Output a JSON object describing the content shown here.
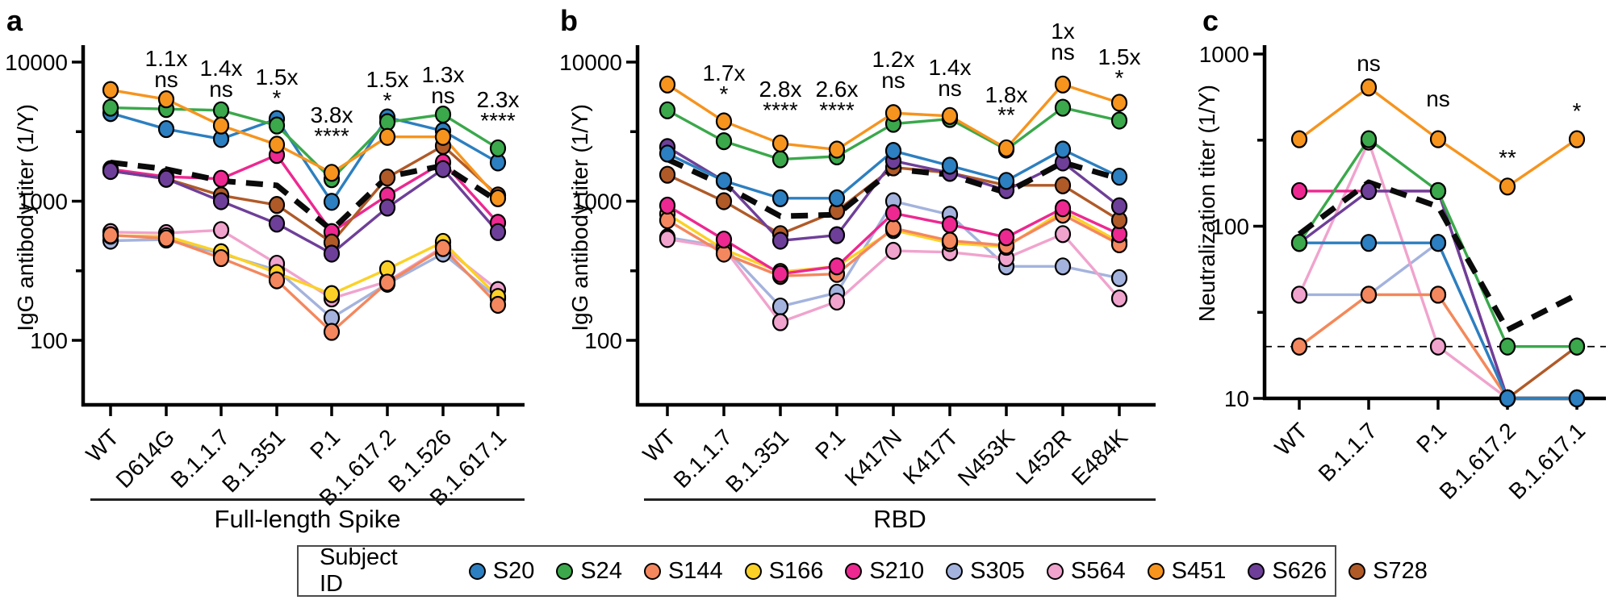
{
  "legend": {
    "title": "Subject ID",
    "subjects": [
      {
        "id": "S20",
        "color": "#2c7fc0"
      },
      {
        "id": "S24",
        "color": "#3aa84b"
      },
      {
        "id": "S144",
        "color": "#f4875e"
      },
      {
        "id": "S166",
        "color": "#fbd127"
      },
      {
        "id": "S210",
        "color": "#ed2891"
      },
      {
        "id": "S305",
        "color": "#a4b3dd"
      },
      {
        "id": "S564",
        "color": "#f0a3cd"
      },
      {
        "id": "S451",
        "color": "#f6941e"
      },
      {
        "id": "S626",
        "color": "#6e3f98"
      },
      {
        "id": "S728",
        "color": "#b05a28"
      }
    ]
  },
  "chart_data": [
    {
      "type": "line",
      "panel_label": "a",
      "ylabel": "IgG antibody titer (1/Y)",
      "group_label": "Full-length Spike",
      "yscale": "log",
      "ylim": [
        50,
        13000
      ],
      "yticks": [
        100,
        1000,
        10000
      ],
      "categories": [
        "WT",
        "D614G",
        "B.1.1.7",
        "B.1.351",
        "P.1",
        "B.1.617.2",
        "B.1.526",
        "B.1.617.1"
      ],
      "series": [
        {
          "name": "S20",
          "values": [
            4300,
            3300,
            2800,
            3900,
            990,
            4000,
            3200,
            1900
          ]
        },
        {
          "name": "S24",
          "values": [
            4700,
            4600,
            4500,
            3500,
            1440,
            3700,
            4200,
            2400
          ]
        },
        {
          "name": "S144",
          "values": [
            570,
            540,
            390,
            270,
            115,
            260,
            460,
            180
          ]
        },
        {
          "name": "S166",
          "values": [
            565,
            560,
            430,
            305,
            215,
            325,
            510,
            205
          ]
        },
        {
          "name": "S210",
          "values": [
            1700,
            1500,
            1450,
            2150,
            600,
            1100,
            1900,
            700
          ]
        },
        {
          "name": "S305",
          "values": [
            520,
            530,
            420,
            320,
            145,
            255,
            420,
            200
          ]
        },
        {
          "name": "S564",
          "values": [
            600,
            590,
            620,
            355,
            200,
            265,
            470,
            230
          ]
        },
        {
          "name": "S451",
          "values": [
            6300,
            5400,
            3500,
            2550,
            1600,
            2900,
            2900,
            1050
          ]
        },
        {
          "name": "S626",
          "values": [
            1650,
            1450,
            1000,
            690,
            420,
            900,
            1700,
            600
          ]
        },
        {
          "name": "S728",
          "values": [
            1650,
            1450,
            1100,
            940,
            505,
            1480,
            2500,
            1100
          ]
        }
      ],
      "mean_series": {
        "name": "geometric mean",
        "style": "dashed",
        "color": "#0a0a0a",
        "values": [
          1900,
          1700,
          1400,
          1300,
          620,
          1500,
          1800,
          1000
        ]
      },
      "annotations": [
        {
          "category": "D614G",
          "fold": "1.1x",
          "sig": "ns"
        },
        {
          "category": "B.1.1.7",
          "fold": "1.4x",
          "sig": "ns"
        },
        {
          "category": "B.1.351",
          "fold": "1.5x",
          "sig": "*"
        },
        {
          "category": "P.1",
          "fold": "3.8x",
          "sig": "****"
        },
        {
          "category": "B.1.617.2",
          "fold": "1.5x",
          "sig": "*"
        },
        {
          "category": "B.1.526",
          "fold": "1.3x",
          "sig": "ns"
        },
        {
          "category": "B.1.617.1",
          "fold": "2.3x",
          "sig": "****"
        }
      ]
    },
    {
      "type": "line",
      "panel_label": "b",
      "ylabel": "IgG antibody titer (1/Y)",
      "group_label": "RBD",
      "yscale": "log",
      "ylim": [
        50,
        13000
      ],
      "yticks": [
        100,
        1000,
        10000
      ],
      "categories": [
        "WT",
        "B.1.1.7",
        "B.1.351",
        "P.1",
        "K417N",
        "K417T",
        "N453K",
        "L452R",
        "E484K"
      ],
      "series": [
        {
          "name": "S20",
          "values": [
            2200,
            1400,
            1050,
            1050,
            2300,
            1800,
            1400,
            2350,
            1500
          ]
        },
        {
          "name": "S24",
          "values": [
            4500,
            2700,
            2000,
            2100,
            3600,
            3900,
            2350,
            4700,
            3800
          ]
        },
        {
          "name": "S144",
          "values": [
            730,
            420,
            290,
            300,
            640,
            520,
            480,
            800,
            490
          ]
        },
        {
          "name": "S166",
          "values": [
            810,
            450,
            310,
            340,
            620,
            500,
            470,
            850,
            510
          ]
        },
        {
          "name": "S210",
          "values": [
            930,
            530,
            300,
            340,
            820,
            680,
            550,
            890,
            580
          ]
        },
        {
          "name": "S305",
          "values": [
            550,
            470,
            175,
            220,
            1000,
            800,
            340,
            340,
            280
          ]
        },
        {
          "name": "S564",
          "values": [
            535,
            460,
            135,
            190,
            440,
            430,
            390,
            580,
            200
          ]
        },
        {
          "name": "S451",
          "values": [
            6900,
            3750,
            2600,
            2350,
            4300,
            4100,
            2400,
            6900,
            5100
          ]
        },
        {
          "name": "S626",
          "values": [
            2450,
            1400,
            520,
            570,
            1950,
            1600,
            1200,
            1900,
            920
          ]
        },
        {
          "name": "S728",
          "values": [
            1550,
            1000,
            580,
            850,
            1750,
            1600,
            1300,
            1300,
            730
          ]
        }
      ],
      "mean_series": {
        "name": "geometric mean",
        "style": "dashed",
        "color": "#0a0a0a",
        "values": [
          2000,
          1300,
          780,
          800,
          1700,
          1550,
          1150,
          1900,
          1450
        ]
      },
      "annotations": [
        {
          "category": "B.1.1.7",
          "fold": "1.7x",
          "sig": "*"
        },
        {
          "category": "B.1.351",
          "fold": "2.8x",
          "sig": "****"
        },
        {
          "category": "P.1",
          "fold": "2.6x",
          "sig": "****"
        },
        {
          "category": "K417N",
          "fold": "1.2x",
          "sig": "ns"
        },
        {
          "category": "K417T",
          "fold": "1.4x",
          "sig": "ns"
        },
        {
          "category": "N453K",
          "fold": "1.8x",
          "sig": "**"
        },
        {
          "category": "L452R",
          "fold": "1x",
          "sig": "ns"
        },
        {
          "category": "E484K",
          "fold": "1.5x",
          "sig": "*"
        }
      ]
    },
    {
      "type": "line",
      "panel_label": "c",
      "ylabel": "Neutralization titer (1/Y)",
      "group_label": null,
      "yscale": "log",
      "ylim": [
        10,
        1000
      ],
      "yticks": [
        10,
        100,
        1000
      ],
      "detection_limit": 20,
      "categories": [
        "WT",
        "B.1.1.7",
        "P.1",
        "B.1.617.2",
        "B.1.617.1"
      ],
      "series": [
        {
          "name": "S20",
          "values": [
            80,
            80,
            80,
            10,
            10
          ]
        },
        {
          "name": "S24",
          "values": [
            80,
            320,
            160,
            20,
            20
          ]
        },
        {
          "name": "S144",
          "values": [
            20,
            40,
            40,
            10,
            10
          ]
        },
        {
          "name": "S166",
          "values": [
            20,
            40,
            40,
            10,
            10
          ]
        },
        {
          "name": "S210",
          "values": [
            160,
            160,
            160,
            10,
            10
          ]
        },
        {
          "name": "S305",
          "values": [
            40,
            40,
            80,
            10,
            10
          ]
        },
        {
          "name": "S564",
          "values": [
            40,
            310,
            20,
            10,
            10
          ]
        },
        {
          "name": "S451",
          "values": [
            320,
            640,
            320,
            170,
            320
          ]
        },
        {
          "name": "S626",
          "values": [
            80,
            160,
            160,
            10,
            10
          ]
        },
        {
          "name": "S728",
          "values": [
            null,
            null,
            null,
            10,
            20
          ]
        }
      ],
      "mean_series": {
        "name": "geometric mean",
        "style": "dashed",
        "color": "#0a0a0a",
        "values": [
          90,
          180,
          130,
          25,
          40
        ]
      },
      "annotations": [
        {
          "category": "B.1.1.7",
          "sig": "ns"
        },
        {
          "category": "P.1",
          "sig": "ns"
        },
        {
          "category": "B.1.617.2",
          "sig": "**"
        },
        {
          "category": "B.1.617.1",
          "sig": "*"
        }
      ]
    }
  ]
}
